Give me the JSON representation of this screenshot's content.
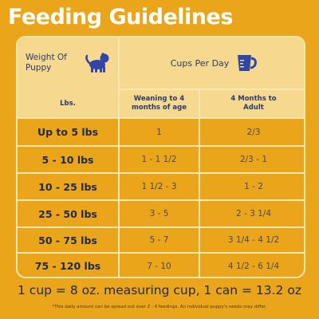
{
  "title": "Feeding Guidelines",
  "table": {
    "weight_header": "Weight Of Puppy",
    "cups_header": "Cups Per Day",
    "col_lbs": "Lbs.",
    "col_weaning": "Weaning to 4 months of age",
    "col_adult": "4 Months to Adult",
    "rows": [
      {
        "lbs": "Up to 5 lbs",
        "weaning": "1",
        "adult": "2/3"
      },
      {
        "lbs": "5 - 10 lbs",
        "weaning": "1 - 1 1/2",
        "adult": "2/3 - 1"
      },
      {
        "lbs": "10 - 25 lbs",
        "weaning": "1 1/2 - 3",
        "adult": "1 - 2"
      },
      {
        "lbs": "25 - 50 lbs",
        "weaning": "3 - 5",
        "adult": "2 - 3 1/4"
      },
      {
        "lbs": "50 - 75 lbs",
        "weaning": "5 - 7",
        "adult": "3 1/4 - 4 1/2"
      },
      {
        "lbs": "75 - 120 lbs",
        "weaning": "7 - 10",
        "adult": "4 1/2 - 6 1/4"
      }
    ]
  },
  "footer": {
    "measure": "1 cup = 8 oz. measuring cup, 1 can = 13.2 oz",
    "note": "*This daily amount can be spread out over 2 - 4 feedings. An individual puppy's needs may differ."
  },
  "icons": {
    "puppy": "puppy-icon",
    "cup": "measuring-cup-icon"
  },
  "colors": {
    "background": "#eba51a",
    "header": "#f6d98e",
    "border": "#fbe6b0",
    "text": "#1f2a4d",
    "icon": "#2f46a8"
  }
}
